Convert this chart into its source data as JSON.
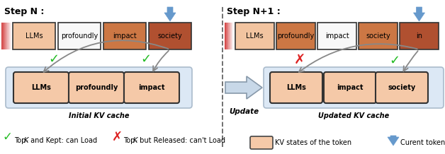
{
  "title_left": "Step N :",
  "title_right": "Step N+1 :",
  "step_n_tokens": [
    "LLMs",
    "profoundly",
    "impact",
    "society"
  ],
  "step_n1_tokens": [
    "LLMs",
    "profoundly",
    "impact",
    "society",
    "in"
  ],
  "step_n_cache": [
    "LLMs",
    "profoundly",
    "impact"
  ],
  "step_n1_cache_left": [
    "LLMs"
  ],
  "step_n1_cache_right": [
    "impact",
    "society"
  ],
  "token_colors_n": [
    "#f2c4a0",
    "#f8f8f8",
    "#cc7744",
    "#b05030"
  ],
  "token_colors_n1": [
    "#f2c4a0",
    "#cc7744",
    "#f8f8f8",
    "#cc7744",
    "#b05030"
  ],
  "cache_color": "#f5c9a8",
  "cache_bg": "#dce8f5",
  "arrow_color": "#6699cc",
  "check_green": "#22bb22",
  "cross_red": "#dd2222",
  "legend_kv_color": "#f5c9a8",
  "gray_arrow": "#888888",
  "update_arrow_color": "#99aabb"
}
